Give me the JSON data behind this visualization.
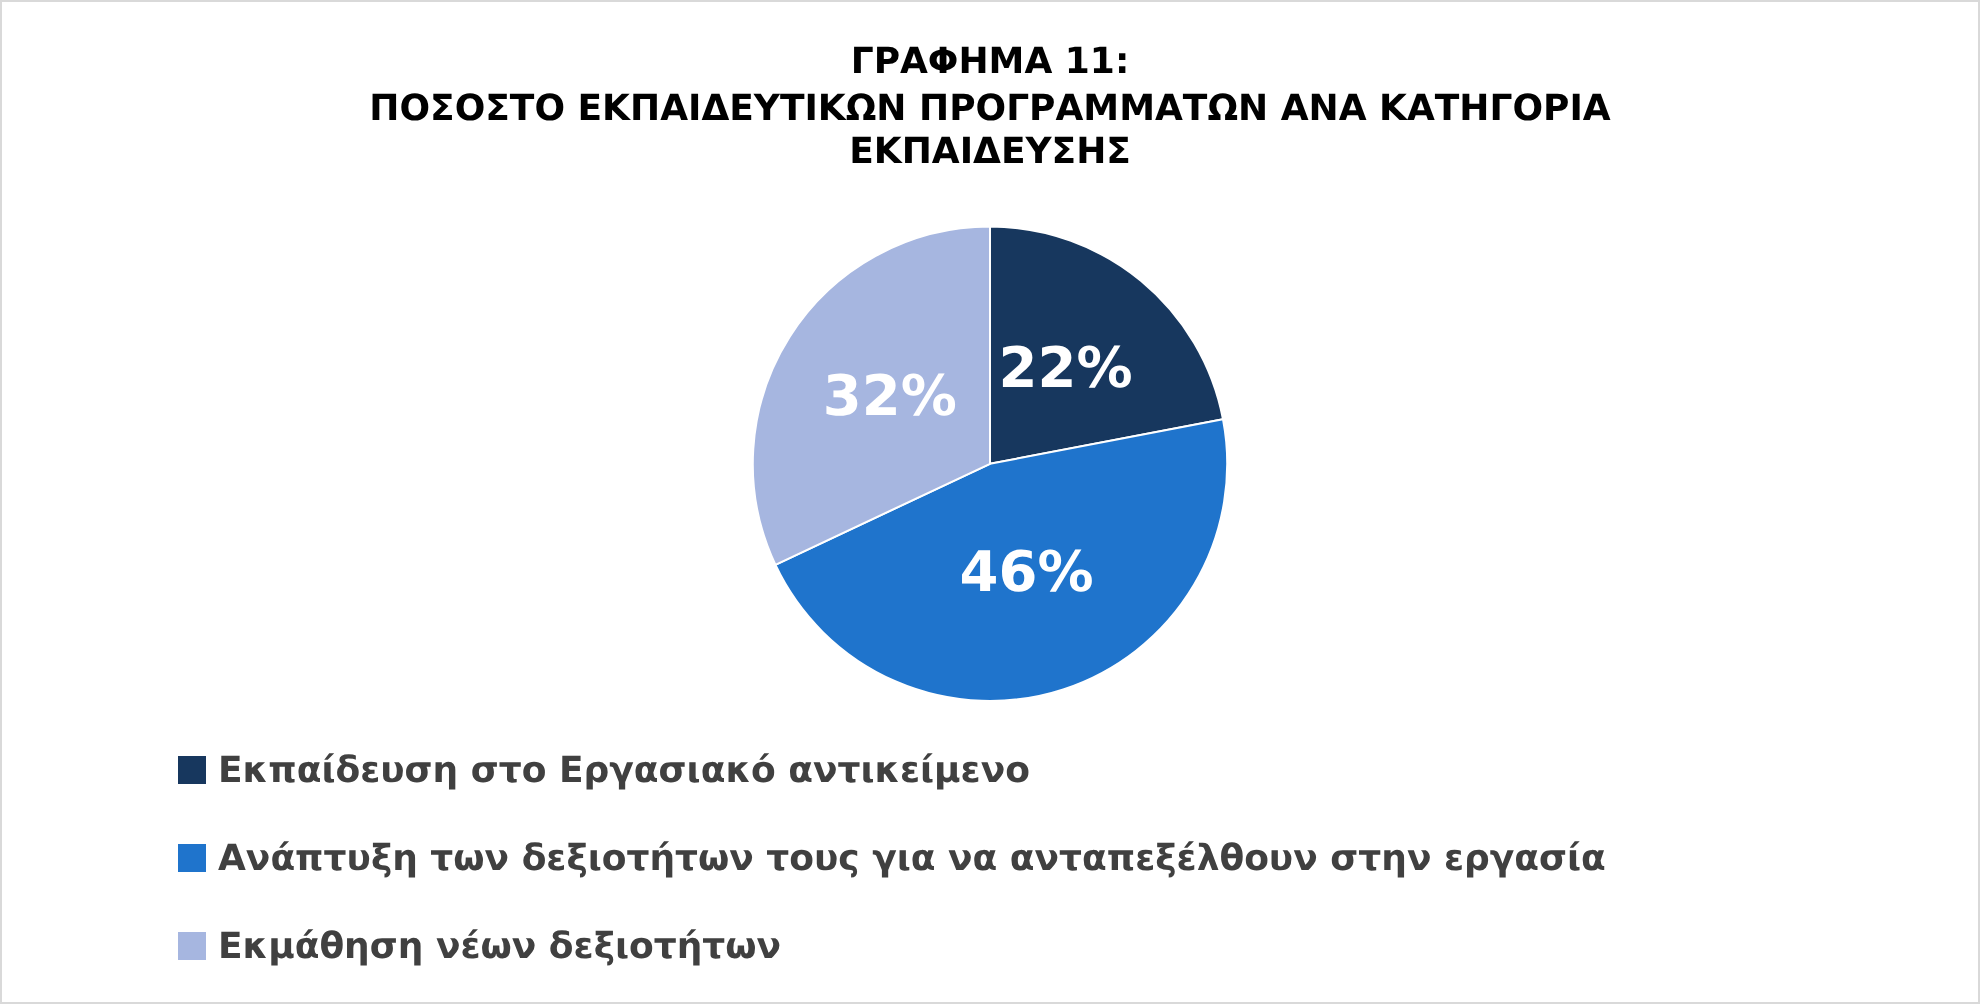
{
  "chart_data": {
    "type": "pie",
    "title": "ΓΡΑΦΗΜΑ 11:",
    "subtitle": "ΠΟΣΟΣΤΟ ΕΚΠΑΙΔΕΥΤΙΚΩΝ ΠΡΟΓΡΑΜΜΑΤΩΝ ΑΝΑ ΚΑΤΗΓΟΡΙΑ ΕΚΠΑΙΔΕΥΣΗΣ",
    "categories": [
      "Εκπαίδευση στο Εργασιακό αντικείμενο",
      "Ανάπτυξη των δεξιοτήτων τους για να ανταπεξέλθουν στην εργασία",
      "Εκμάθηση νέων δεξιοτήτων"
    ],
    "values": [
      22,
      46,
      32
    ],
    "colors": [
      "#17375e",
      "#1f74cc",
      "#a6b6e0"
    ],
    "value_labels": [
      "22%",
      "46%",
      "32%"
    ],
    "legend": "bottom"
  }
}
